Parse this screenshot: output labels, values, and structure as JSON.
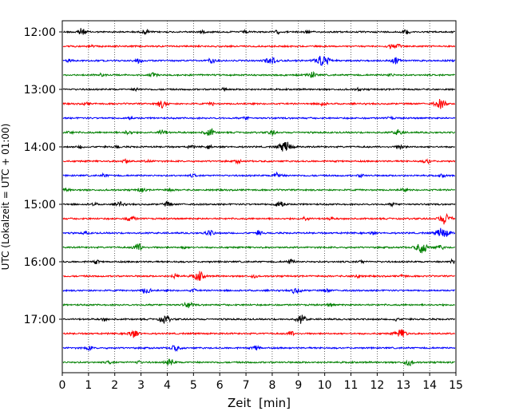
{
  "chart_data": {
    "type": "line",
    "title": "",
    "xlabel": "Zeit  [min]",
    "ylabel": "UTC (Lokalzeit = UTC + 01:00)",
    "xlim": [
      0,
      15
    ],
    "x_ticks": [
      0,
      1,
      2,
      3,
      4,
      5,
      6,
      7,
      8,
      9,
      10,
      11,
      12,
      13,
      14,
      15
    ],
    "y_tick_labels": [
      "12:00",
      "13:00",
      "14:00",
      "15:00",
      "16:00",
      "17:00"
    ],
    "trace_start_time": "12:00",
    "trace_interval_min": 15,
    "trace_count": 24,
    "grid": "vertical dotted",
    "colors": [
      "#000000",
      "#ff0000",
      "#0000ff",
      "#008000"
    ],
    "series": [
      {
        "start": "12:00",
        "color": "#000000",
        "events": [
          [
            0.7,
            5
          ],
          [
            3.2,
            3
          ],
          [
            5.3,
            2
          ],
          [
            7.0,
            2
          ],
          [
            8.2,
            2
          ],
          [
            9.3,
            2
          ],
          [
            13.1,
            3
          ]
        ]
      },
      {
        "start": "12:15",
        "color": "#ff0000",
        "events": [
          [
            1.1,
            2
          ],
          [
            12.5,
            3
          ],
          [
            12.8,
            2
          ]
        ]
      },
      {
        "start": "12:30",
        "color": "#0000ff",
        "events": [
          [
            0.3,
            2
          ],
          [
            2.9,
            3
          ],
          [
            5.7,
            3
          ],
          [
            7.8,
            3
          ],
          [
            8.0,
            4
          ],
          [
            9.9,
            8
          ],
          [
            12.7,
            4
          ]
        ]
      },
      {
        "start": "12:45",
        "color": "#008000",
        "events": [
          [
            1.5,
            2
          ],
          [
            3.5,
            3
          ],
          [
            9.5,
            4
          ],
          [
            12.5,
            2
          ]
        ]
      },
      {
        "start": "13:00",
        "color": "#000000",
        "events": [
          [
            2.8,
            2
          ],
          [
            6.2,
            2
          ],
          [
            11.3,
            2
          ]
        ]
      },
      {
        "start": "13:15",
        "color": "#ff0000",
        "events": [
          [
            0.9,
            2
          ],
          [
            3.8,
            5
          ],
          [
            5.7,
            2
          ],
          [
            9.9,
            3
          ],
          [
            14.4,
            6
          ]
        ]
      },
      {
        "start": "13:30",
        "color": "#0000ff",
        "events": [
          [
            2.6,
            2
          ],
          [
            7.0,
            2
          ],
          [
            12.5,
            2
          ]
        ]
      },
      {
        "start": "13:45",
        "color": "#008000",
        "events": [
          [
            0.3,
            2
          ],
          [
            2.5,
            3
          ],
          [
            3.8,
            4
          ],
          [
            5.6,
            5
          ],
          [
            8.0,
            3
          ],
          [
            12.8,
            4
          ]
        ]
      },
      {
        "start": "14:00",
        "color": "#000000",
        "events": [
          [
            0.7,
            2
          ],
          [
            2.1,
            2
          ],
          [
            4.9,
            2
          ],
          [
            5.6,
            2
          ],
          [
            8.5,
            7
          ],
          [
            12.9,
            3
          ]
        ]
      },
      {
        "start": "14:15",
        "color": "#ff0000",
        "events": [
          [
            2.4,
            3
          ],
          [
            3.3,
            2
          ],
          [
            6.7,
            2
          ],
          [
            13.9,
            3
          ]
        ]
      },
      {
        "start": "14:30",
        "color": "#0000ff",
        "events": [
          [
            1.6,
            2
          ],
          [
            5.0,
            2
          ],
          [
            8.2,
            4
          ],
          [
            11.4,
            2
          ],
          [
            14.5,
            2
          ]
        ]
      },
      {
        "start": "14:45",
        "color": "#008000",
        "events": [
          [
            0.2,
            2
          ],
          [
            3.0,
            3
          ],
          [
            4.1,
            2
          ],
          [
            13.0,
            2
          ]
        ]
      },
      {
        "start": "15:00",
        "color": "#000000",
        "events": [
          [
            1.2,
            2
          ],
          [
            2.2,
            3
          ],
          [
            4.0,
            3
          ],
          [
            8.3,
            5
          ],
          [
            12.6,
            2
          ]
        ]
      },
      {
        "start": "15:15",
        "color": "#ff0000",
        "events": [
          [
            2.6,
            4
          ],
          [
            9.3,
            3
          ],
          [
            10.2,
            2
          ],
          [
            14.6,
            7
          ]
        ]
      },
      {
        "start": "15:30",
        "color": "#0000ff",
        "events": [
          [
            0.9,
            2
          ],
          [
            5.6,
            4
          ],
          [
            7.5,
            3
          ],
          [
            11.8,
            2
          ],
          [
            14.5,
            7
          ]
        ]
      },
      {
        "start": "15:45",
        "color": "#008000",
        "events": [
          [
            2.9,
            5
          ],
          [
            4.6,
            2
          ],
          [
            13.7,
            7
          ],
          [
            14.4,
            3
          ]
        ]
      },
      {
        "start": "16:00",
        "color": "#000000",
        "events": [
          [
            1.3,
            2
          ],
          [
            8.7,
            3
          ],
          [
            11.4,
            2
          ],
          [
            14.9,
            3
          ]
        ]
      },
      {
        "start": "16:15",
        "color": "#ff0000",
        "events": [
          [
            4.3,
            3
          ],
          [
            5.2,
            6
          ],
          [
            7.3,
            2
          ],
          [
            11.2,
            3
          ],
          [
            13.0,
            2
          ]
        ]
      },
      {
        "start": "16:30",
        "color": "#0000ff",
        "events": [
          [
            3.2,
            4
          ],
          [
            5.0,
            2
          ],
          [
            8.9,
            4
          ],
          [
            10.1,
            2
          ]
        ]
      },
      {
        "start": "16:45",
        "color": "#008000",
        "events": [
          [
            4.8,
            4
          ],
          [
            10.2,
            2
          ]
        ]
      },
      {
        "start": "17:00",
        "color": "#000000",
        "events": [
          [
            1.6,
            2
          ],
          [
            3.9,
            5
          ],
          [
            9.1,
            5
          ],
          [
            12.7,
            2
          ]
        ]
      },
      {
        "start": "17:15",
        "color": "#ff0000",
        "events": [
          [
            2.7,
            5
          ],
          [
            8.7,
            3
          ],
          [
            12.9,
            6
          ]
        ]
      },
      {
        "start": "17:30",
        "color": "#0000ff",
        "events": [
          [
            1.0,
            3
          ],
          [
            4.3,
            4
          ],
          [
            7.4,
            3
          ]
        ]
      },
      {
        "start": "17:45",
        "color": "#008000",
        "events": [
          [
            1.8,
            2
          ],
          [
            2.9,
            2
          ],
          [
            4.1,
            4
          ],
          [
            13.2,
            4
          ]
        ]
      }
    ]
  }
}
